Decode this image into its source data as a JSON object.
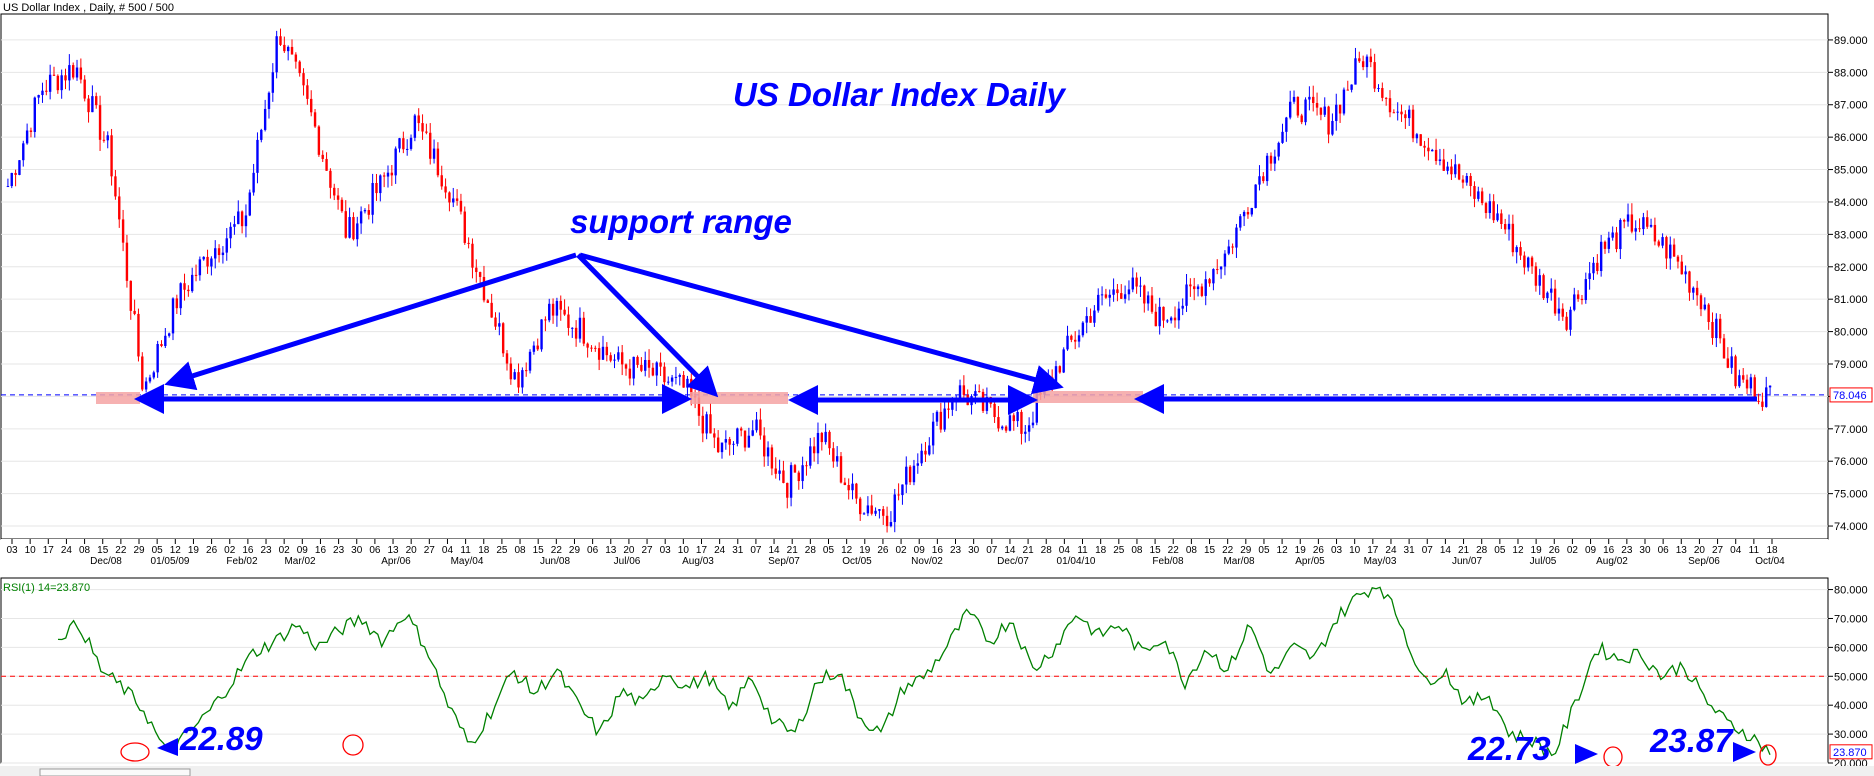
{
  "header": "US Dollar Index , Daily, # 500 / 500",
  "colors": {
    "up": "#0000ff",
    "down": "#ff0000",
    "rsi_line": "#008000",
    "support": "#0000ff",
    "dashed_price": "#0000ff",
    "rsi_mid": "#ff0000",
    "highlight": "#f4a3a3"
  },
  "chart_data": [
    {
      "type": "candlestick",
      "title": "US Dollar Index Daily",
      "ylim": [
        73.6,
        89.8
      ],
      "y_ticks": [
        "74.000",
        "75.000",
        "76.000",
        "77.000",
        "78.000",
        "79.000",
        "80.000",
        "81.000",
        "82.000",
        "83.000",
        "84.000",
        "85.000",
        "86.000",
        "87.000",
        "88.000",
        "89.000"
      ],
      "last_price_label": "78.046",
      "last_price": 78.046,
      "x_day_ticks": [
        "03",
        "10",
        "17",
        "24",
        "08",
        "15",
        "22",
        "29",
        "05",
        "12",
        "19",
        "26",
        "02",
        "16",
        "23",
        "02",
        "09",
        "16",
        "23",
        "30",
        "06",
        "13",
        "20",
        "27",
        "04",
        "11",
        "18",
        "25",
        "08",
        "15",
        "22",
        "29",
        "06",
        "13",
        "20",
        "27",
        "03",
        "10",
        "17",
        "24",
        "31",
        "07",
        "14",
        "21",
        "28",
        "05",
        "12",
        "19",
        "26",
        "02",
        "09",
        "16",
        "23",
        "30",
        "07",
        "14",
        "21",
        "28",
        "04",
        "11",
        "18",
        "25",
        "08",
        "15",
        "22",
        "08",
        "15",
        "22",
        "29",
        "05",
        "12",
        "19",
        "26",
        "03",
        "10",
        "17",
        "24",
        "31",
        "07",
        "14",
        "21",
        "28",
        "05",
        "12",
        "19",
        "26",
        "02",
        "09",
        "16",
        "23",
        "30",
        "06",
        "13",
        "20",
        "27",
        "04",
        "11",
        "18"
      ],
      "x_month_ticks": [
        "Dec/08",
        "01/05/09",
        "Feb/02",
        "Mar/02",
        "Apr/06",
        "May/04",
        "Jun/08",
        "Jul/06",
        "Aug/03",
        "Sep/07",
        "Oct/05",
        "Nov/02",
        "Dec/07",
        "01/04/10",
        "Feb/08",
        "Mar/08",
        "Apr/05",
        "May/03",
        "Jun/07",
        "Jul/05",
        "Aug/02",
        "Sep/06",
        "Oct/04"
      ],
      "key_points": [
        84.5,
        87.5,
        88.2,
        85.5,
        78.2,
        81.0,
        82.5,
        83.5,
        89.3,
        86.5,
        83.0,
        84.5,
        86.5,
        84.5,
        81.5,
        78.5,
        80.7,
        80.0,
        79.0,
        78.7,
        78.2,
        76.3,
        77.0,
        75.3,
        76.8,
        74.8,
        74.4,
        76.5,
        78.2,
        77.5,
        77.0,
        79.0,
        80.7,
        81.5,
        80.4,
        81.2,
        82.5,
        85.0,
        87.0,
        86.5,
        88.5,
        86.8,
        85.8,
        84.5,
        83.5,
        81.8,
        80.5,
        82.5,
        83.4,
        82.5,
        81.0,
        78.5,
        78.0
      ],
      "support_level": 78.0
    },
    {
      "type": "line",
      "title": "RSI(1) 14=23.870",
      "ylim": [
        20,
        84
      ],
      "y_ticks": [
        "20.000",
        "30.000",
        "40.000",
        "50.000",
        "60.000",
        "70.000",
        "80.000"
      ],
      "last_value_label": "23.870",
      "midline": 50,
      "key_points": [
        64,
        68,
        52,
        46,
        38,
        22.89,
        30,
        38,
        48,
        58,
        62,
        68,
        60,
        66,
        70,
        62,
        72,
        60,
        40,
        26,
        38,
        52,
        44,
        52,
        40,
        30,
        45,
        40,
        52,
        46,
        50,
        38,
        50,
        34,
        30,
        48,
        52,
        36,
        30,
        46,
        50,
        60,
        72,
        62,
        70,
        52,
        60,
        72,
        64,
        68,
        58,
        64,
        48,
        60,
        52,
        68,
        50,
        60,
        56,
        70,
        78,
        82,
        68,
        48,
        52,
        40,
        44,
        30,
        28,
        22.73,
        40,
        60,
        56,
        58,
        50,
        54,
        42,
        34,
        30,
        23.87
      ]
    }
  ],
  "annotations": {
    "support_range": "support range",
    "rsi_low_1": "22.89",
    "rsi_low_2": "22.73",
    "rsi_low_3": "23.87"
  }
}
